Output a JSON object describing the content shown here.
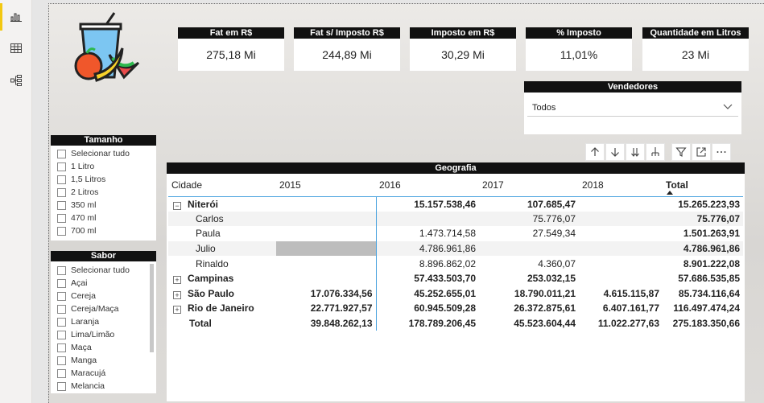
{
  "nav": {
    "items": [
      {
        "icon": "bar-chart-icon",
        "active": true
      },
      {
        "icon": "table-grid-icon",
        "active": false
      },
      {
        "icon": "model-tree-icon",
        "active": false
      }
    ]
  },
  "cards": [
    {
      "title": "Fat em R$",
      "value": "275,18 Mi"
    },
    {
      "title": "Fat s/ Imposto R$",
      "value": "244,89 Mi"
    },
    {
      "title": "Imposto em R$",
      "value": "30,29 Mi"
    },
    {
      "title": "% Imposto",
      "value": "11,01%"
    },
    {
      "title": "Quantidade em Litros",
      "value": "23 Mi"
    }
  ],
  "vendedores": {
    "title": "Vendedores",
    "selected": "Todos"
  },
  "tamanho": {
    "title": "Tamanho",
    "items": [
      "Selecionar tudo",
      "1 Litro",
      "1,5 Litros",
      "2 Litros",
      "350 ml",
      "470 ml",
      "700 ml"
    ]
  },
  "sabor": {
    "title": "Sabor",
    "items": [
      "Selecionar tudo",
      "Açai",
      "Cereja",
      "Cereja/Maça",
      "Laranja",
      "Lima/Limão",
      "Maça",
      "Manga",
      "Maracujá",
      "Melancia"
    ]
  },
  "toolbar": {
    "icons": [
      "arrow-up-icon",
      "arrow-down-icon",
      "double-arrow-down-icon",
      "expand-hierarchy-icon",
      "filter-icon",
      "focus-mode-icon",
      "more-options-icon"
    ]
  },
  "matrix": {
    "title": "Geografia",
    "columns": [
      "Cidade",
      "2015",
      "2016",
      "2017",
      "2018",
      "Total"
    ],
    "rows": [
      {
        "kind": "group",
        "expanded": true,
        "cells": [
          "Niterói",
          "",
          "15.157.538,46",
          "107.685,47",
          "",
          "15.265.223,93"
        ]
      },
      {
        "kind": "sub",
        "cells": [
          "Carlos",
          "",
          "",
          "75.776,07",
          "",
          "75.776,07"
        ]
      },
      {
        "kind": "sub",
        "cells": [
          "Paula",
          "",
          "1.473.714,58",
          "27.549,34",
          "",
          "1.501.263,91"
        ]
      },
      {
        "kind": "sub",
        "highlight2015": true,
        "cells": [
          "Julio",
          "",
          "4.786.961,86",
          "",
          "",
          "4.786.961,86"
        ]
      },
      {
        "kind": "sub",
        "cells": [
          "Rinaldo",
          "",
          "8.896.862,02",
          "4.360,07",
          "",
          "8.901.222,08"
        ]
      },
      {
        "kind": "group",
        "expanded": false,
        "cells": [
          "Campinas",
          "",
          "57.433.503,70",
          "253.032,15",
          "",
          "57.686.535,85"
        ]
      },
      {
        "kind": "group",
        "expanded": false,
        "cells": [
          "São Paulo",
          "17.076.334,56",
          "45.252.655,01",
          "18.790.011,21",
          "4.615.115,87",
          "85.734.116,64"
        ]
      },
      {
        "kind": "group",
        "expanded": false,
        "cells": [
          "Rio de Janeiro",
          "22.771.927,57",
          "60.945.509,28",
          "26.372.875,61",
          "6.407.161,77",
          "116.497.474,24"
        ]
      },
      {
        "kind": "total",
        "cells": [
          "Total",
          "39.848.262,13",
          "178.789.206,45",
          "45.523.604,44",
          "11.022.277,63",
          "275.183.350,66"
        ]
      }
    ]
  },
  "colors": {
    "accent": "#f2c811",
    "header": "#111111",
    "divider": "#4aa3df"
  }
}
